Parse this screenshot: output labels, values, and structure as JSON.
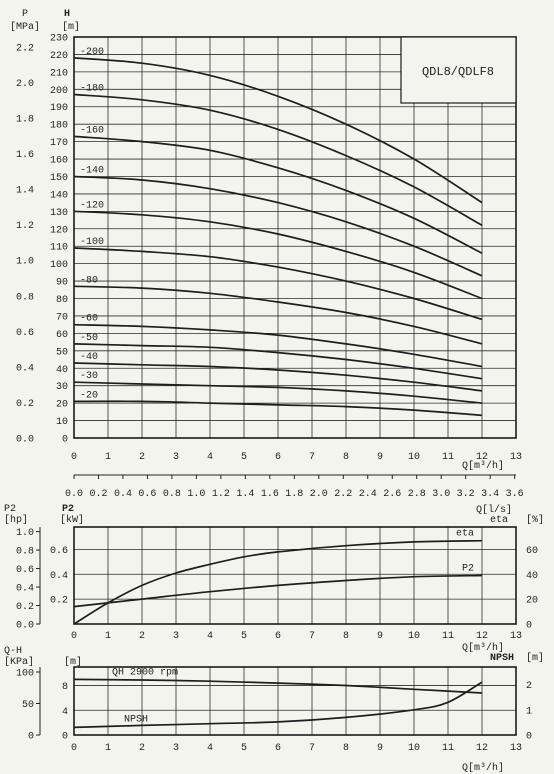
{
  "main": {
    "model": "QDL8/QDLF8",
    "p_label": "P",
    "p_unit": "[MPa]",
    "h_label": "H",
    "h_unit": "[m]",
    "q_label": "Q[m³/h]",
    "q2_label": "Q[l/s]",
    "p2_label": "P2",
    "p2_hp": "[hp]",
    "p2_kw": "[kW]",
    "eta_label": "eta",
    "eta_unit": "[%]",
    "qh_label": "Q-H",
    "kpa_unit": "[KPa]",
    "m_unit": "[m]",
    "npsh_label": "NPSH",
    "npsh_unit": "[m]"
  },
  "chart_data": [
    {
      "type": "line",
      "title": "QDL8/QDLF8",
      "xlabel": "Q[m³/h]",
      "ylabel": "H [m]",
      "xlim": [
        0,
        13
      ],
      "ylim": [
        0,
        230
      ],
      "x_ticks": [
        "0",
        "1",
        "2",
        "3",
        "4",
        "5",
        "6",
        "7",
        "8",
        "9",
        "10",
        "11",
        "12",
        "13"
      ],
      "y_ticks": [
        "0",
        "10",
        "20",
        "30",
        "40",
        "50",
        "60",
        "70",
        "80",
        "90",
        "100",
        "110",
        "120",
        "130",
        "140",
        "150",
        "160",
        "170",
        "180",
        "190",
        "200",
        "210",
        "220",
        "230"
      ],
      "left_axis_label": "P [MPa]",
      "left_ticks": [
        "0.0",
        "0.2",
        "0.4",
        "0.6",
        "0.8",
        "1.0",
        "1.2",
        "1.4",
        "1.6",
        "1.8",
        "2.0",
        "2.2"
      ],
      "secondary_x_label": "Q[l/s]",
      "secondary_x_ticks": [
        "0.0",
        "0.2",
        "0.4",
        "0.6",
        "0.8",
        "1.0",
        "1.2",
        "1.4",
        "1.6",
        "1.8",
        "2.0",
        "2.2",
        "2.4",
        "2.6",
        "2.8",
        "3.0",
        "3.2",
        "3.4",
        "3.6"
      ],
      "x": [
        0,
        2,
        4,
        6,
        8,
        10,
        12
      ],
      "series": [
        {
          "name": "-200",
          "values": [
            218,
            215,
            208,
            196,
            180,
            160,
            135
          ]
        },
        {
          "name": "-180",
          "values": [
            197,
            194,
            188,
            177,
            162,
            144,
            122
          ]
        },
        {
          "name": "-160",
          "values": [
            173,
            170,
            165,
            155,
            142,
            126,
            106
          ]
        },
        {
          "name": "-140",
          "values": [
            150,
            148,
            143,
            135,
            124,
            110,
            93
          ]
        },
        {
          "name": "-120",
          "values": [
            130,
            128,
            124,
            117,
            107,
            95,
            80
          ]
        },
        {
          "name": "-100",
          "values": [
            109,
            107,
            104,
            98,
            90,
            80,
            68
          ]
        },
        {
          "name": "-80",
          "values": [
            87,
            86,
            83,
            78,
            72,
            64,
            54
          ]
        },
        {
          "name": "-60",
          "values": [
            65,
            64,
            62,
            59,
            54,
            48,
            41
          ]
        },
        {
          "name": "-50",
          "values": [
            54,
            53,
            52,
            49,
            45,
            40,
            34
          ]
        },
        {
          "name": "-40",
          "values": [
            43,
            42,
            41,
            39,
            36,
            32,
            27
          ]
        },
        {
          "name": "-30",
          "values": [
            32,
            31,
            30,
            29,
            27,
            24,
            20
          ]
        },
        {
          "name": "-20",
          "values": [
            21,
            21,
            20,
            19,
            18,
            16,
            13
          ]
        }
      ]
    },
    {
      "type": "line",
      "xlabel": "Q[m³/h]",
      "xlim": [
        0,
        13
      ],
      "x_ticks": [
        "0",
        "1",
        "2",
        "3",
        "4",
        "5",
        "6",
        "7",
        "8",
        "9",
        "10",
        "11",
        "12",
        "13"
      ],
      "left_axis_label": "P2 [hp]",
      "left_ticks": [
        "0.0",
        "0.2",
        "0.4",
        "0.6",
        "0.8",
        "1.0"
      ],
      "middle_axis_label": "P2 [kW]",
      "middle_ticks": [
        "0.2",
        "0.4",
        "0.6"
      ],
      "right_axis_label": "eta [%]",
      "right_ticks": [
        "0",
        "20",
        "40",
        "60"
      ],
      "series": [
        {
          "name": "eta",
          "axis": "right",
          "x": [
            0,
            1,
            2,
            3,
            4,
            5,
            6,
            8,
            10,
            12
          ],
          "values": [
            0,
            17,
            31,
            41,
            48,
            54,
            58,
            63,
            66,
            67
          ]
        },
        {
          "name": "P2",
          "axis": "middle",
          "x": [
            0,
            2,
            4,
            6,
            8,
            10,
            12
          ],
          "values": [
            0.14,
            0.2,
            0.26,
            0.31,
            0.35,
            0.38,
            0.39
          ]
        }
      ]
    },
    {
      "type": "line",
      "xlabel": "Q[m³/h]",
      "xlim": [
        0,
        13
      ],
      "x_ticks": [
        "0",
        "1",
        "2",
        "3",
        "4",
        "5",
        "6",
        "7",
        "8",
        "9",
        "10",
        "11",
        "12",
        "13"
      ],
      "left_axis_label": "Q-H [KPa]",
      "left_ticks": [
        "0",
        "50",
        "100"
      ],
      "middle_axis_label": "[m]",
      "middle_ticks": [
        "0",
        "4",
        "8"
      ],
      "right_axis_label": "NPSH [m]",
      "right_ticks": [
        "0",
        "1",
        "2"
      ],
      "series": [
        {
          "name": "QH 2900 rpm",
          "axis": "middle",
          "x": [
            0,
            2,
            4,
            6,
            8,
            10,
            12
          ],
          "values": [
            9,
            8.9,
            8.7,
            8.4,
            8.0,
            7.4,
            6.8
          ]
        },
        {
          "name": "NPSH",
          "axis": "right",
          "x": [
            0,
            2,
            4,
            6,
            8,
            10,
            11,
            12
          ],
          "values": [
            0.3,
            0.38,
            0.45,
            0.52,
            0.7,
            1.0,
            1.3,
            2.1
          ]
        }
      ]
    }
  ]
}
